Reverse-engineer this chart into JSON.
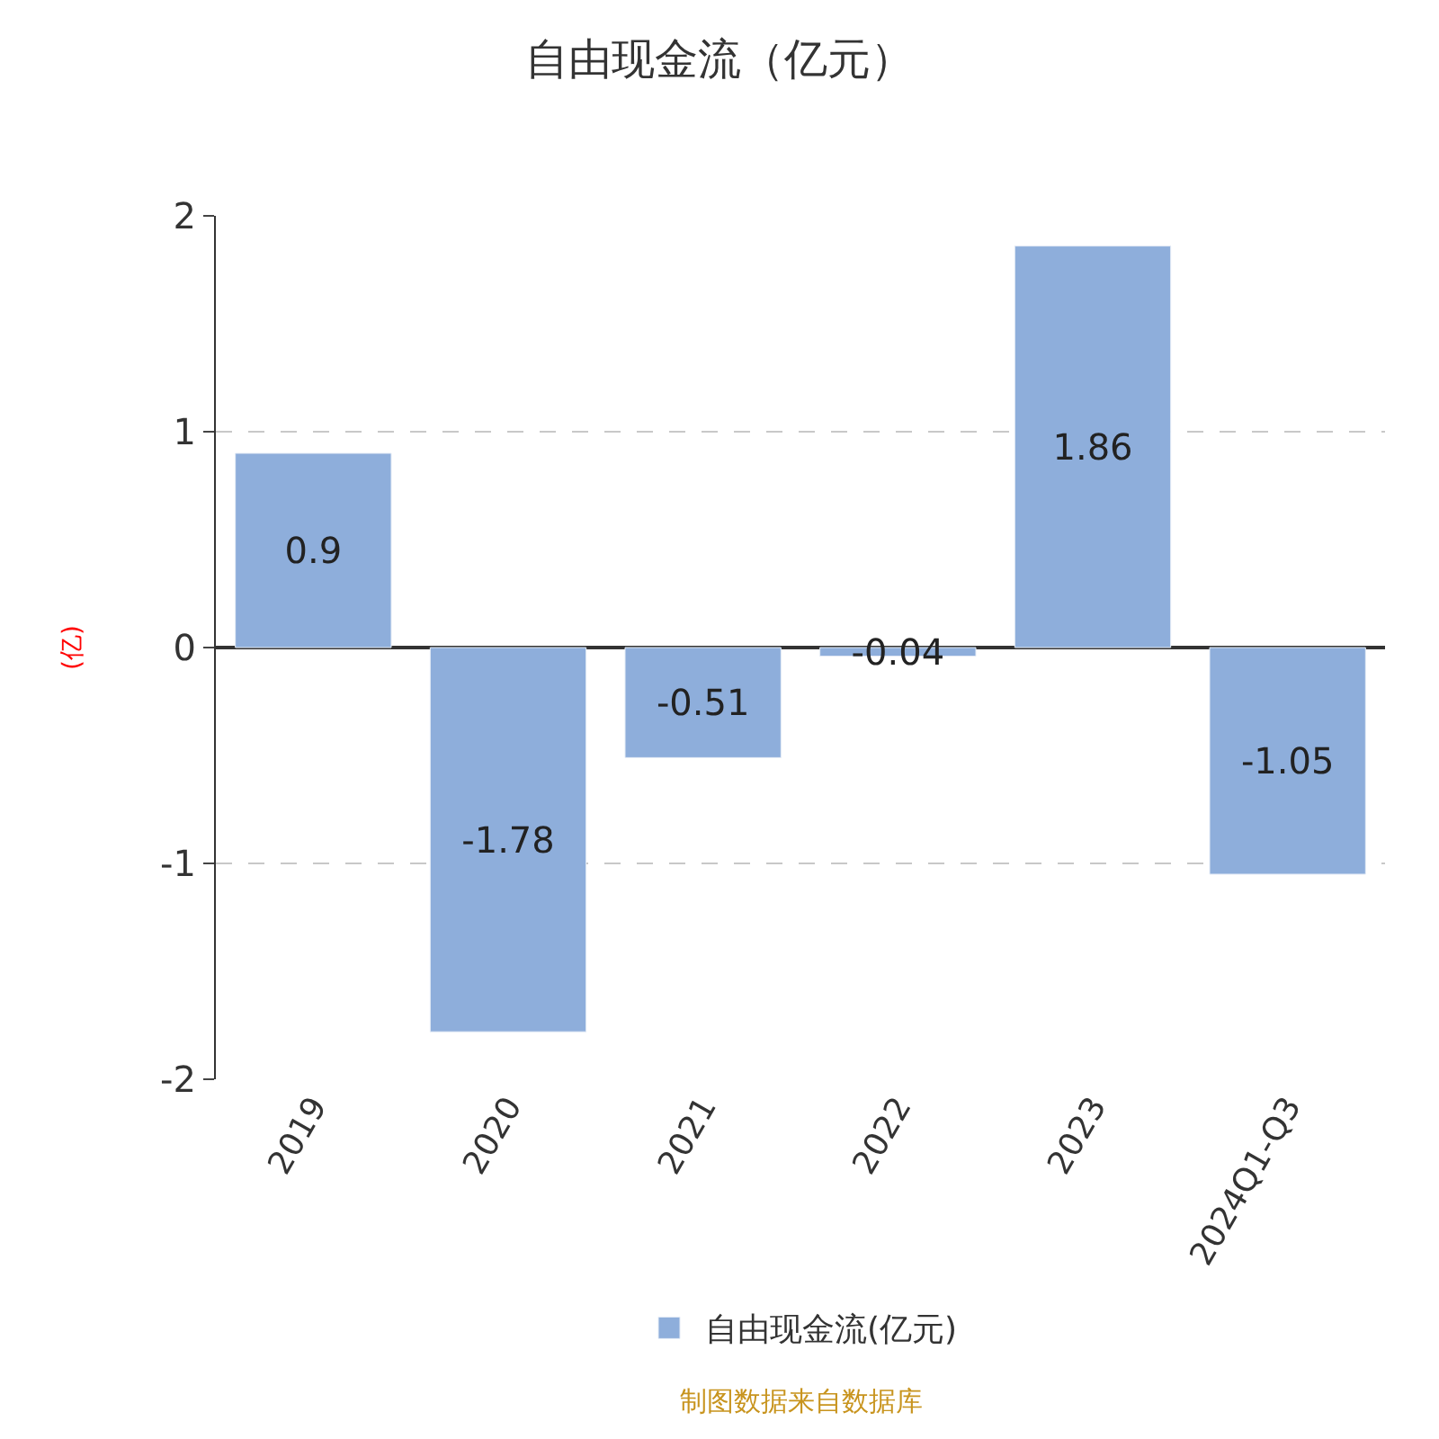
{
  "chart_data": {
    "type": "bar",
    "title": "自由现金流（亿元）",
    "ylabel": "(亿)",
    "categories": [
      "2019",
      "2020",
      "2021",
      "2022",
      "2023",
      "2024Q1-Q3"
    ],
    "series": [
      {
        "name": "自由现金流(亿元)",
        "color": "#8eaedb",
        "values": [
          0.9,
          -1.78,
          -0.51,
          -0.04,
          1.86,
          -1.05
        ]
      }
    ],
    "ylim": [
      -2,
      2
    ],
    "yticks": [
      -2,
      -1,
      0,
      1,
      2
    ],
    "grid": "y",
    "line_style": "dashed",
    "legend": "bottom",
    "data_labels": true,
    "annotations": [
      "制图数据来自数据库"
    ]
  }
}
